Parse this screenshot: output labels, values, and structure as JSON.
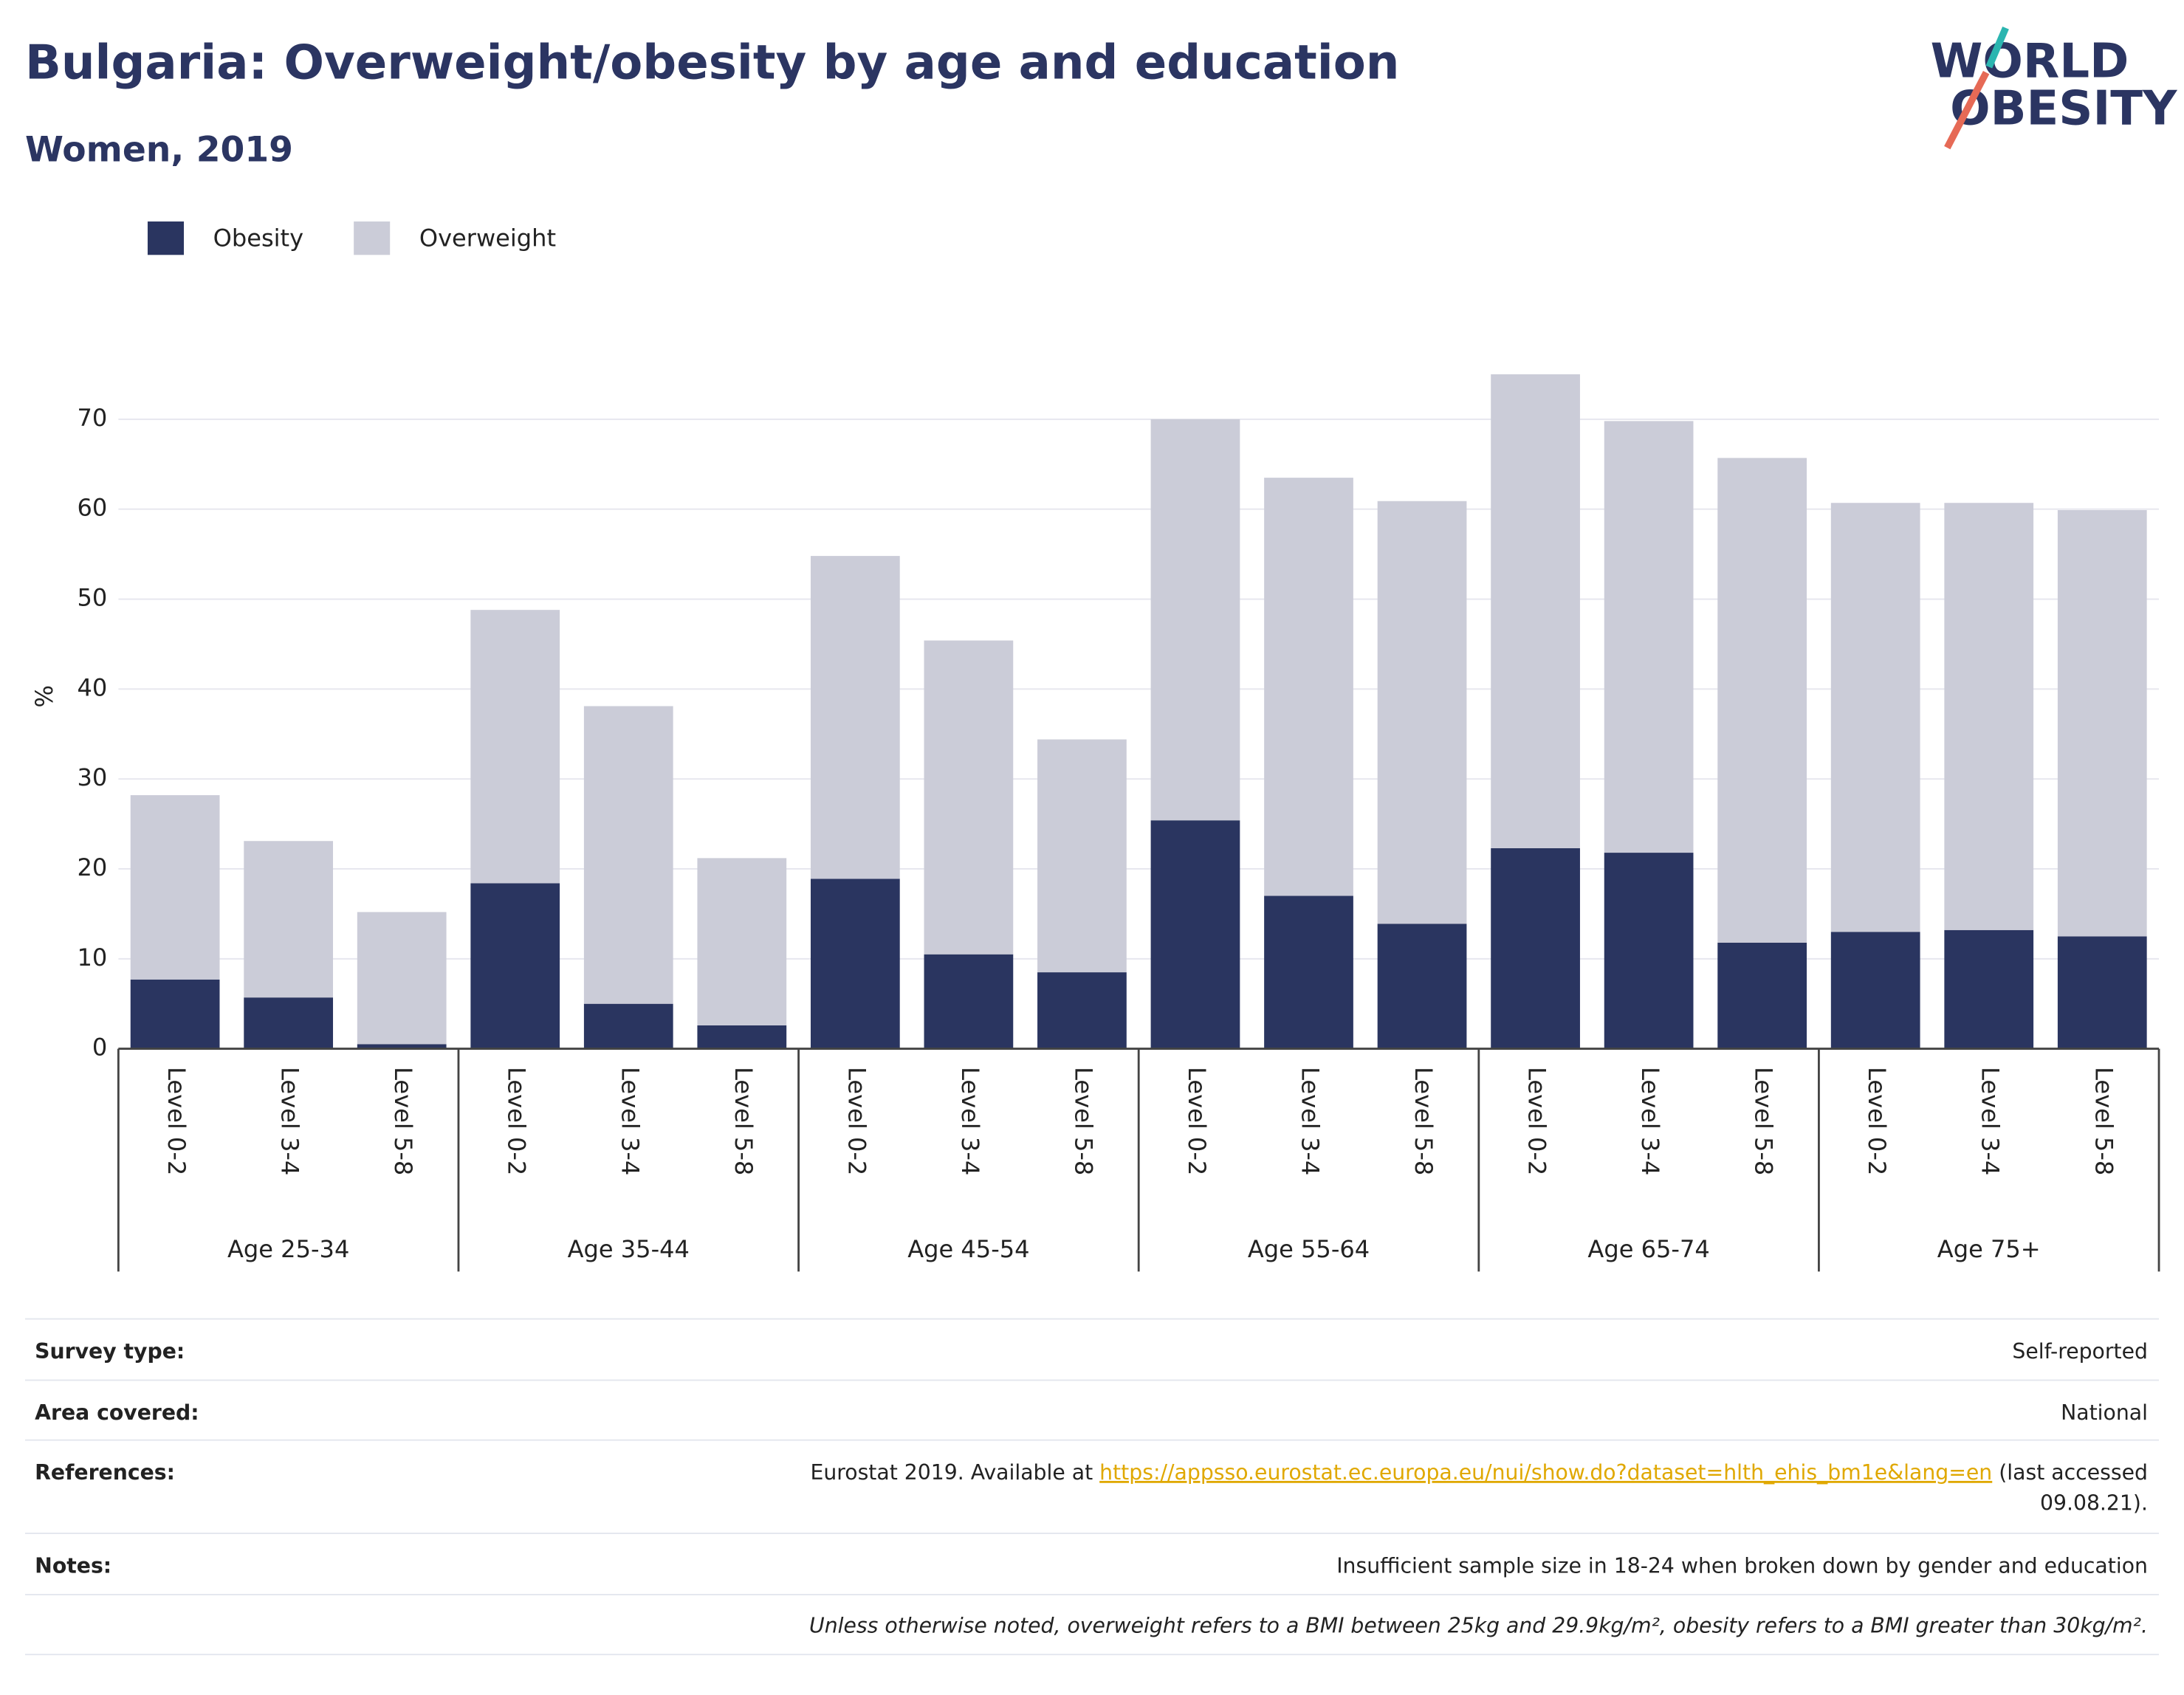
{
  "chart_data": {
    "type": "stacked_bar",
    "title": "Bulgaria: Overweight/obesity by age and education",
    "subtitle": "Women, 2019",
    "logo": [
      "WORLD",
      "OBESITY"
    ],
    "y_label": "%",
    "categories": [
      "Level 0-2",
      "Level 3-4",
      "Level 5-8",
      "Level 0-2",
      "Level 3-4",
      "Level 5-8",
      "Level 0-2",
      "Level 3-4",
      "Level 5-8",
      "Level 0-2",
      "Level 3-4",
      "Level 5-8",
      "Level 0-2",
      "Level 3-4",
      "Level 5-8",
      "Level 0-2",
      "Level 3-4",
      "Level 5-8"
    ],
    "groups": [
      "Age 25-34",
      "Age 35-44",
      "Age 45-54",
      "Age 55-64",
      "Age 65-74",
      "Age 75+"
    ],
    "series": [
      {
        "name": "Obesity",
        "color": "#2a3560",
        "values": [
          7.7,
          5.7,
          0.5,
          18.4,
          5.0,
          2.6,
          18.9,
          10.5,
          8.5,
          25.4,
          17.0,
          13.9,
          22.3,
          21.8,
          11.8,
          13.0,
          13.2,
          12.5
        ]
      },
      {
        "name": "Overweight",
        "color": "#cbccd8",
        "values": [
          20.5,
          17.4,
          14.7,
          30.4,
          33.1,
          18.6,
          35.9,
          34.9,
          25.9,
          44.6,
          46.5,
          47.0,
          52.7,
          48.0,
          53.9,
          47.7,
          47.5,
          47.4
        ]
      }
    ],
    "ylim": [
      0,
      75
    ],
    "yticks": [
      0,
      10,
      20,
      30,
      40,
      50,
      60,
      70
    ],
    "grid": true,
    "legend": "top-left"
  },
  "footer": {
    "rows": [
      {
        "label": "Survey type:",
        "value": "Self-reported"
      },
      {
        "label": "Area covered:",
        "value": "National"
      },
      {
        "label": "References:",
        "value_parts": [
          "Eurostat 2019. Available at ",
          "https://appsso.eurostat.ec.europa.eu/nui/show.do?dataset=hlth_ehis_bm1e&lang=en",
          " (last accessed",
          "09.08.21)."
        ]
      },
      {
        "label": "Notes:",
        "value": "Insufficient sample size in 18-24 when broken down by gender and education"
      }
    ],
    "note": "Unless otherwise noted, overweight refers to a BMI between 25kg and 29.9kg/m², obesity refers to a BMI greater than 30kg/m²."
  }
}
